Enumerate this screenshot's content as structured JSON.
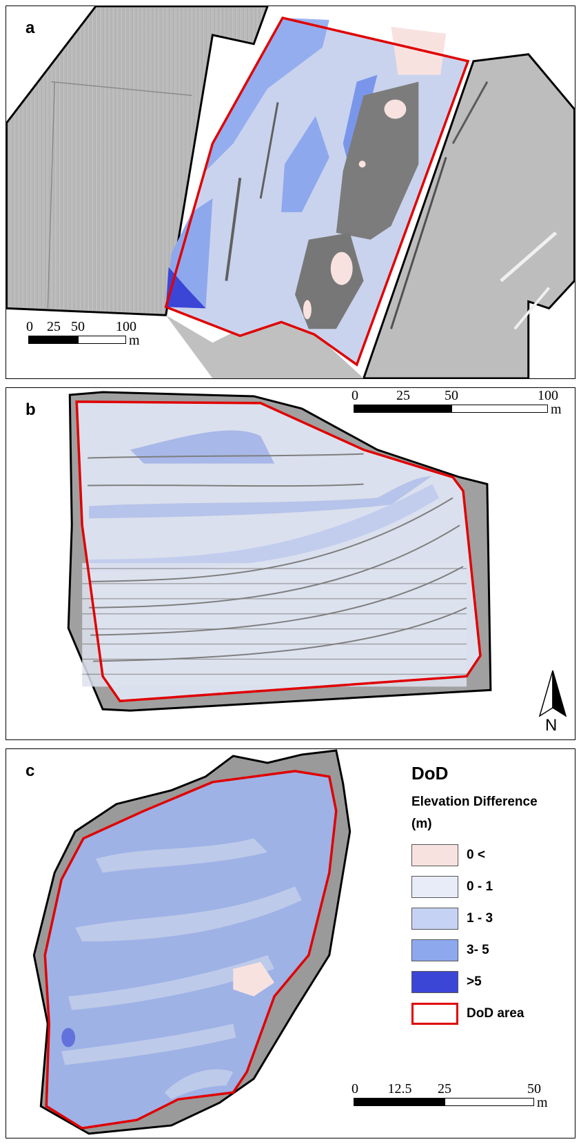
{
  "panels": [
    {
      "label": "a",
      "scalebar": {
        "ticks": [
          "0",
          "25",
          "50",
          "100"
        ],
        "unit": "m"
      }
    },
    {
      "label": "b",
      "scalebar": {
        "ticks": [
          "0",
          "25",
          "50",
          "100"
        ],
        "unit": "m"
      },
      "north_arrow": "N"
    },
    {
      "label": "c",
      "scalebar": {
        "ticks": [
          "0",
          "12.5",
          "25",
          "50"
        ],
        "unit": "m"
      }
    }
  ],
  "legend": {
    "title": "DoD",
    "subtitle_line1": "Elevation Difference",
    "subtitle_line2": "(m)",
    "items": [
      {
        "label": "0 <",
        "color": "#f8e2e0"
      },
      {
        "label": "0 - 1",
        "color": "#e8ecf8"
      },
      {
        "label": "1 - 3",
        "color": "#c6d2f4"
      },
      {
        "label": "3- 5",
        "color": "#8ea8ee"
      },
      {
        "label": ">5",
        "color": "#3c46d6"
      },
      {
        "label": "DoD area",
        "color": "#e00000"
      }
    ]
  },
  "colors": {
    "dod_outline": "#e00000",
    "hillshade": "#b8b8b8",
    "hillshade_dark": "#707070"
  }
}
